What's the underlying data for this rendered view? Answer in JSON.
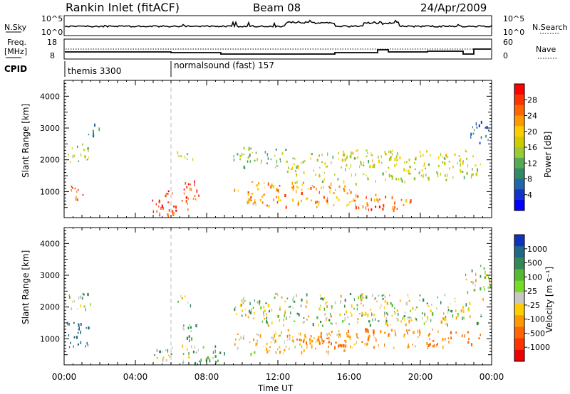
{
  "header": {
    "station": "Rankin Inlet (fitACF)",
    "beam": "Beam 08",
    "date": "24/Apr/2009"
  },
  "upper_panel": {
    "left_label": "N.Sky",
    "right_label": "N.Search",
    "ticks": [
      "10^5",
      "10^0"
    ]
  },
  "freq_panel": {
    "left_label": "Freq.",
    "left_unit": "[MHz]",
    "left_ticks": [
      "18",
      "8"
    ],
    "right_label": "Nave",
    "right_ticks": [
      "60",
      "0"
    ]
  },
  "cpid": {
    "label": "CPID",
    "segments": [
      {
        "name": "themis 3300",
        "start_hour": 0
      },
      {
        "name": "normalsound (fast) 157",
        "start_hour": 6
      }
    ]
  },
  "power_panel": {
    "ylabel": "Slant Range [km]",
    "colorbar_label": "Power [dB]",
    "colorbar_ticks": [
      "28",
      "24",
      "20",
      "16",
      "12",
      "8",
      "4"
    ],
    "colors": [
      "#ff0000",
      "#ff3300",
      "#ff6600",
      "#ff9900",
      "#ffcc00",
      "#cccc00",
      "#99cc33",
      "#55aa55",
      "#338866",
      "#2266aa",
      "#1133cc",
      "#0000ff"
    ]
  },
  "velocity_panel": {
    "ylabel": "Slant Range [km]",
    "colorbar_label": "Velocity [m s⁻¹]",
    "colorbar_ticks": [
      "1000",
      "500",
      "100",
      "25",
      "-25",
      "-100",
      "-500",
      "-1000"
    ],
    "colors": [
      "#1133bb",
      "#226688",
      "#338855",
      "#55bb33",
      "#77dd22",
      "#c8c8c0",
      "#ffcc00",
      "#ff9900",
      "#ff6600",
      "#ff3300",
      "#ee0000"
    ]
  },
  "x_axis": {
    "label": "Time UT",
    "ticks": [
      "00:00",
      "04:00",
      "08:00",
      "12:00",
      "16:00",
      "20:00",
      "00:00"
    ]
  },
  "chart_data": {
    "type": "heatmap",
    "x_range_hours": [
      0,
      24
    ],
    "y_range_km": [
      180,
      4500
    ],
    "y_ticks_km": [
      1000,
      2000,
      3000,
      4000
    ],
    "power_regions": [
      {
        "t": [
          0.1,
          1.3
        ],
        "r": [
          700,
          1200
        ],
        "level": 26
      },
      {
        "t": [
          0.1,
          1.5
        ],
        "r": [
          1900,
          2500
        ],
        "level": 14
      },
      {
        "t": [
          1.3,
          2.0
        ],
        "r": [
          2700,
          3100
        ],
        "level": 6
      },
      {
        "t": [
          4.8,
          7.0
        ],
        "r": [
          200,
          1000
        ],
        "level": 28
      },
      {
        "t": [
          6.6,
          7.6
        ],
        "r": [
          700,
          1400
        ],
        "level": 26
      },
      {
        "t": [
          6.3,
          7.2
        ],
        "r": [
          2000,
          2400
        ],
        "level": 14
      },
      {
        "t": [
          9.5,
          16.5
        ],
        "r": [
          500,
          1300
        ],
        "level": 22
      },
      {
        "t": [
          9.5,
          12.5
        ],
        "r": [
          1700,
          2400
        ],
        "level": 12
      },
      {
        "t": [
          12.5,
          23.5
        ],
        "r": [
          1300,
          2300
        ],
        "level": 16
      },
      {
        "t": [
          16.0,
          19.5
        ],
        "r": [
          400,
          900
        ],
        "level": 24
      },
      {
        "t": [
          22.8,
          23.9
        ],
        "r": [
          2500,
          3200
        ],
        "level": 6
      }
    ],
    "velocity_regions": [
      {
        "t": [
          0.1,
          1.5
        ],
        "r": [
          700,
          1500
        ],
        "level": 500
      },
      {
        "t": [
          0.1,
          1.5
        ],
        "r": [
          1900,
          2500
        ],
        "level": 0
      },
      {
        "t": [
          6.5,
          7.4
        ],
        "r": [
          900,
          1500
        ],
        "level": 100
      },
      {
        "t": [
          6.3,
          7.2
        ],
        "r": [
          2000,
          2400
        ],
        "level": 0
      },
      {
        "t": [
          5.0,
          9.0
        ],
        "r": [
          200,
          800
        ],
        "level": 50
      },
      {
        "t": [
          9.5,
          16.5
        ],
        "r": [
          500,
          1200
        ],
        "level": -100
      },
      {
        "t": [
          9.5,
          23.5
        ],
        "r": [
          1400,
          2400
        ],
        "level": 0
      },
      {
        "t": [
          12.5,
          23.5
        ],
        "r": [
          700,
          1300
        ],
        "level": -300
      },
      {
        "t": [
          22.5,
          23.9
        ],
        "r": [
          2400,
          3300
        ],
        "level": 0
      }
    ]
  }
}
